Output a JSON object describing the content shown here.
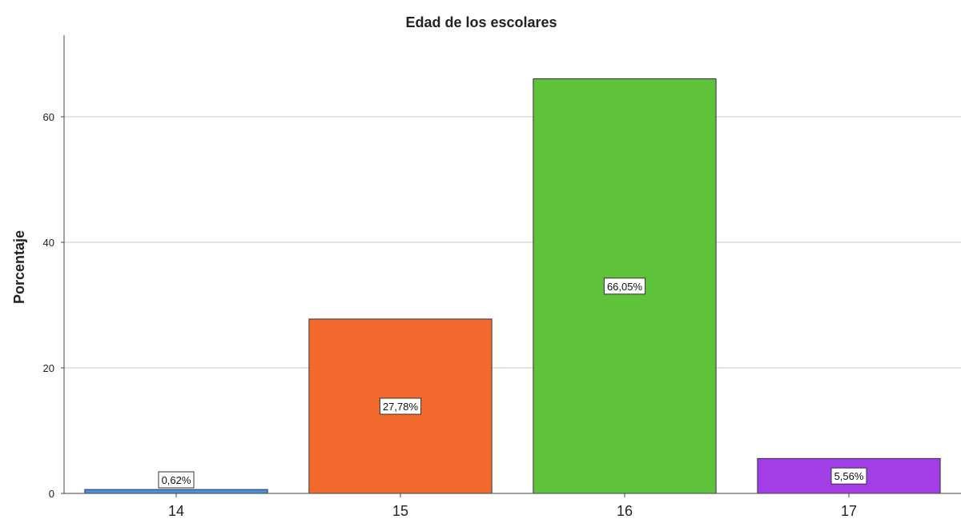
{
  "chart_data": {
    "type": "bar",
    "title": "Edad de los escolares",
    "xlabel": "",
    "ylabel": "Porcentaje",
    "categories": [
      "14",
      "15",
      "16",
      "17"
    ],
    "values": [
      0.62,
      27.78,
      66.05,
      5.56
    ],
    "data_labels": [
      "0,62%",
      "27,78%",
      "66,05%",
      "5,56%"
    ],
    "colors": [
      "#4a90e2",
      "#f26a2e",
      "#5fc23b",
      "#a23ee6"
    ],
    "ylim": [
      0,
      73
    ],
    "yticks": [
      0,
      20,
      40,
      60
    ],
    "grid": true
  }
}
